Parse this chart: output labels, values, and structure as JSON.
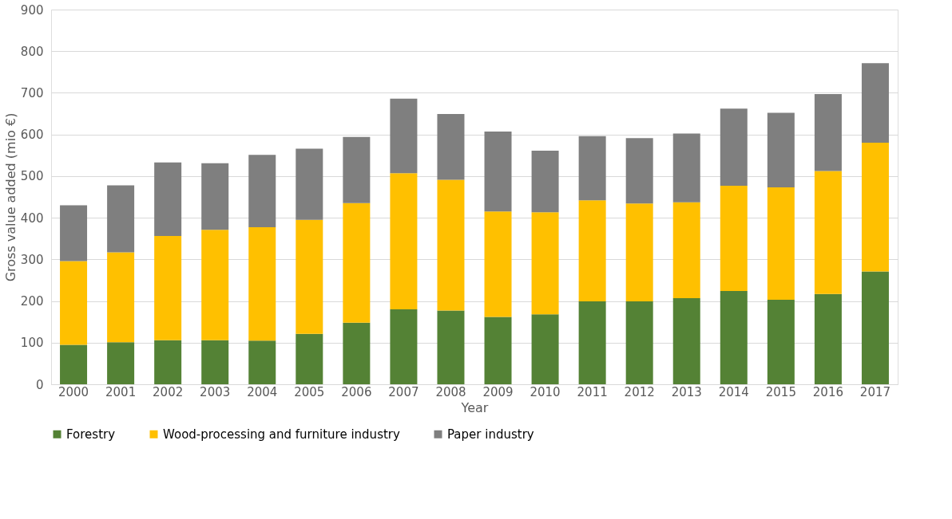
{
  "chart_data": {
    "type": "bar",
    "stacked": true,
    "xlabel": "Year",
    "ylabel": "Gross value added (mio €)",
    "categories": [
      "2000",
      "2001",
      "2002",
      "2003",
      "2004",
      "2005",
      "2006",
      "2007",
      "2008",
      "2009",
      "2010",
      "2011",
      "2012",
      "2013",
      "2014",
      "2015",
      "2016",
      "2017"
    ],
    "series": [
      {
        "name": "Forestry",
        "color": "#548235",
        "values": [
          95,
          101,
          106,
          106,
          105,
          121,
          148,
          180,
          177,
          162,
          168,
          199,
          199,
          207,
          224,
          203,
          217,
          271
        ]
      },
      {
        "name": "Wood-processing and furniture industry",
        "color": "#ffc000",
        "values": [
          201,
          216,
          250,
          265,
          272,
          274,
          287,
          327,
          314,
          253,
          245,
          243,
          235,
          230,
          253,
          270,
          295,
          309
        ]
      },
      {
        "name": "Paper industry",
        "color": "#7f7f7f",
        "values": [
          134,
          161,
          177,
          160,
          174,
          171,
          159,
          179,
          158,
          192,
          148,
          154,
          157,
          165,
          185,
          179,
          185,
          191
        ]
      }
    ],
    "ylim": [
      0,
      900
    ],
    "yticks": [
      0,
      100,
      200,
      300,
      400,
      500,
      600,
      700,
      800,
      900
    ],
    "grid": "y",
    "legend": "bottom"
  }
}
